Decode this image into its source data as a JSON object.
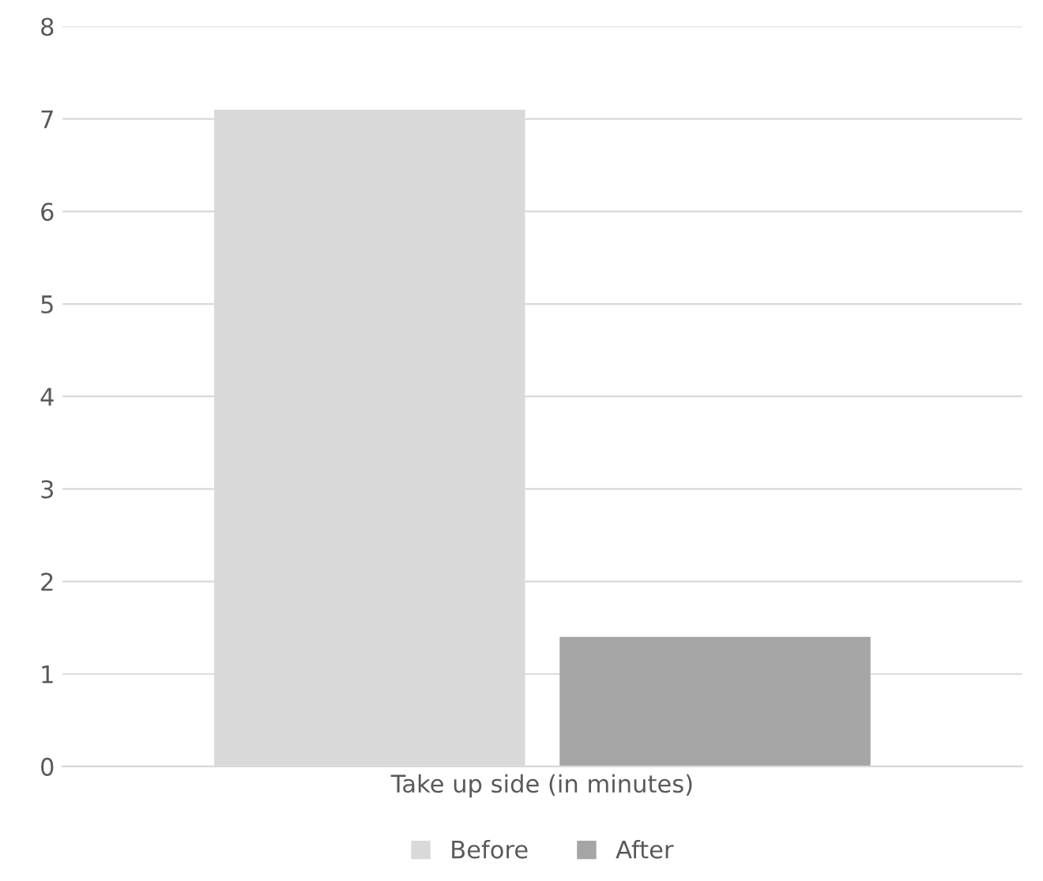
{
  "chart_data": {
    "type": "bar",
    "categories": [
      "Take up side (in minutes)"
    ],
    "series": [
      {
        "name": "Before",
        "color": "#d9d9d9",
        "values": [
          7.1
        ]
      },
      {
        "name": "After",
        "color": "#a5a5a5",
        "values": [
          1.4
        ]
      }
    ],
    "ylim": [
      0,
      8
    ],
    "yticks": [
      0,
      1,
      2,
      3,
      4,
      5,
      6,
      7,
      8
    ],
    "grid": "y",
    "legend": "bottom"
  }
}
